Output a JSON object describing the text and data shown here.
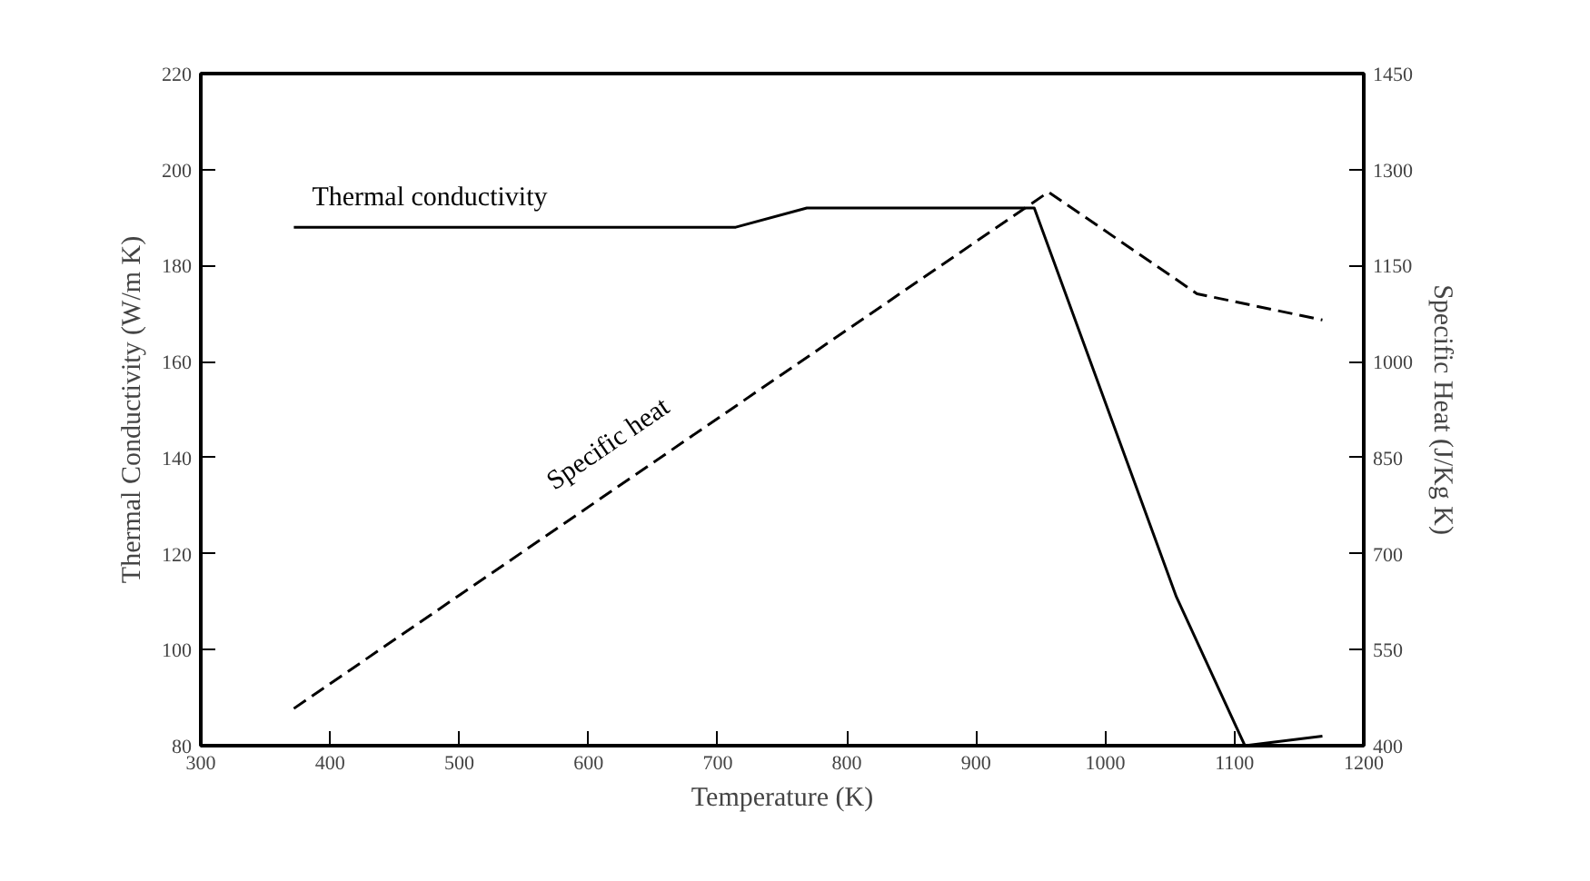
{
  "chart_data": {
    "type": "line",
    "xlabel": "Temperature (K)",
    "ylabel": "Thermal Conductivity (W/m K)",
    "y2label": "Specific Heat (J/Kg K)",
    "xlim": [
      300,
      1200
    ],
    "xticks": [
      300,
      400,
      500,
      600,
      700,
      800,
      900,
      1000,
      1100,
      1200
    ],
    "ylim": [
      80,
      220
    ],
    "yticks": [
      80,
      100,
      120,
      140,
      160,
      180,
      200,
      220
    ],
    "y2lim": [
      400,
      1450
    ],
    "y2ticks": [
      400,
      550,
      700,
      850,
      1000,
      1150,
      1300,
      1450
    ],
    "grid": false,
    "marker": "none",
    "series": [
      {
        "name": "Thermal conductivity",
        "color": "#000000",
        "line_style": "solid",
        "x": [
          372,
          714,
          769,
          945,
          1055,
          1108,
          1168
        ],
        "values": [
          188,
          188,
          192,
          192,
          111,
          80,
          82
        ]
      },
      {
        "name": "Specific heat",
        "color": "#000000",
        "line_style": "dashed",
        "axis": "y2",
        "x": [
          372,
          956,
          1071,
          1168
        ],
        "values": [
          458,
          1265,
          1106,
          1065
        ]
      }
    ]
  }
}
